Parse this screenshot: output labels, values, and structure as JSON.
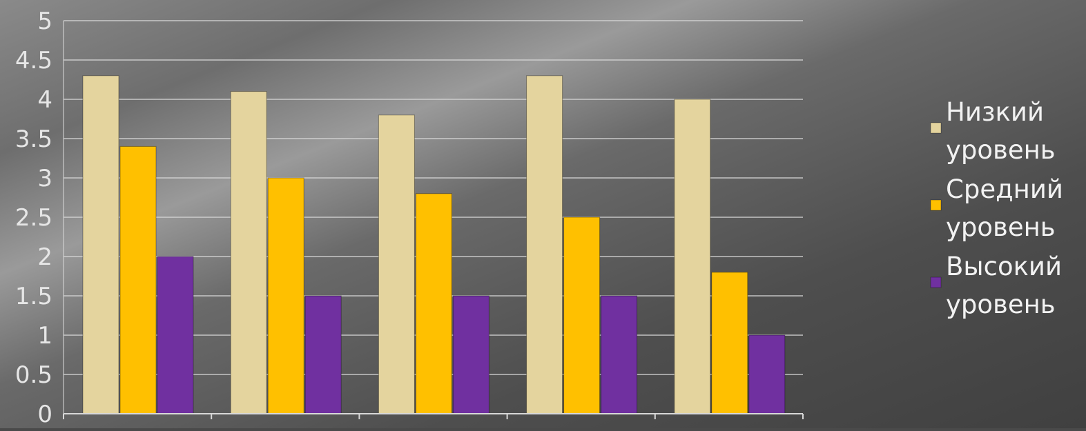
{
  "chart_data": {
    "type": "bar",
    "categories": [
      "",
      "",
      "",
      "",
      ""
    ],
    "series": [
      {
        "name": "Низкий уровень",
        "values": [
          4.3,
          4.1,
          3.8,
          4.3,
          4.0
        ]
      },
      {
        "name": "Средний уровень",
        "values": [
          3.4,
          3.0,
          2.8,
          2.5,
          1.8
        ]
      },
      {
        "name": "Высокий уровень",
        "values": [
          2.0,
          1.5,
          1.5,
          1.5,
          1.0
        ]
      }
    ],
    "ylim": [
      0,
      5
    ],
    "yticks": [
      "0",
      "0.5",
      "1",
      "1.5",
      "2",
      "2.5",
      "3",
      "3.5",
      "4",
      "4.5",
      "5"
    ],
    "grid": true,
    "legend_position": "right",
    "legend": [
      {
        "line1": "Низкий",
        "line2": "уровень"
      },
      {
        "line1": "Средний",
        "line2": "уровень"
      },
      {
        "line1": "Высокий",
        "line2": "уровень"
      }
    ],
    "colors": [
      "#e4d49e",
      "#ffc000",
      "#7030a0"
    ]
  }
}
